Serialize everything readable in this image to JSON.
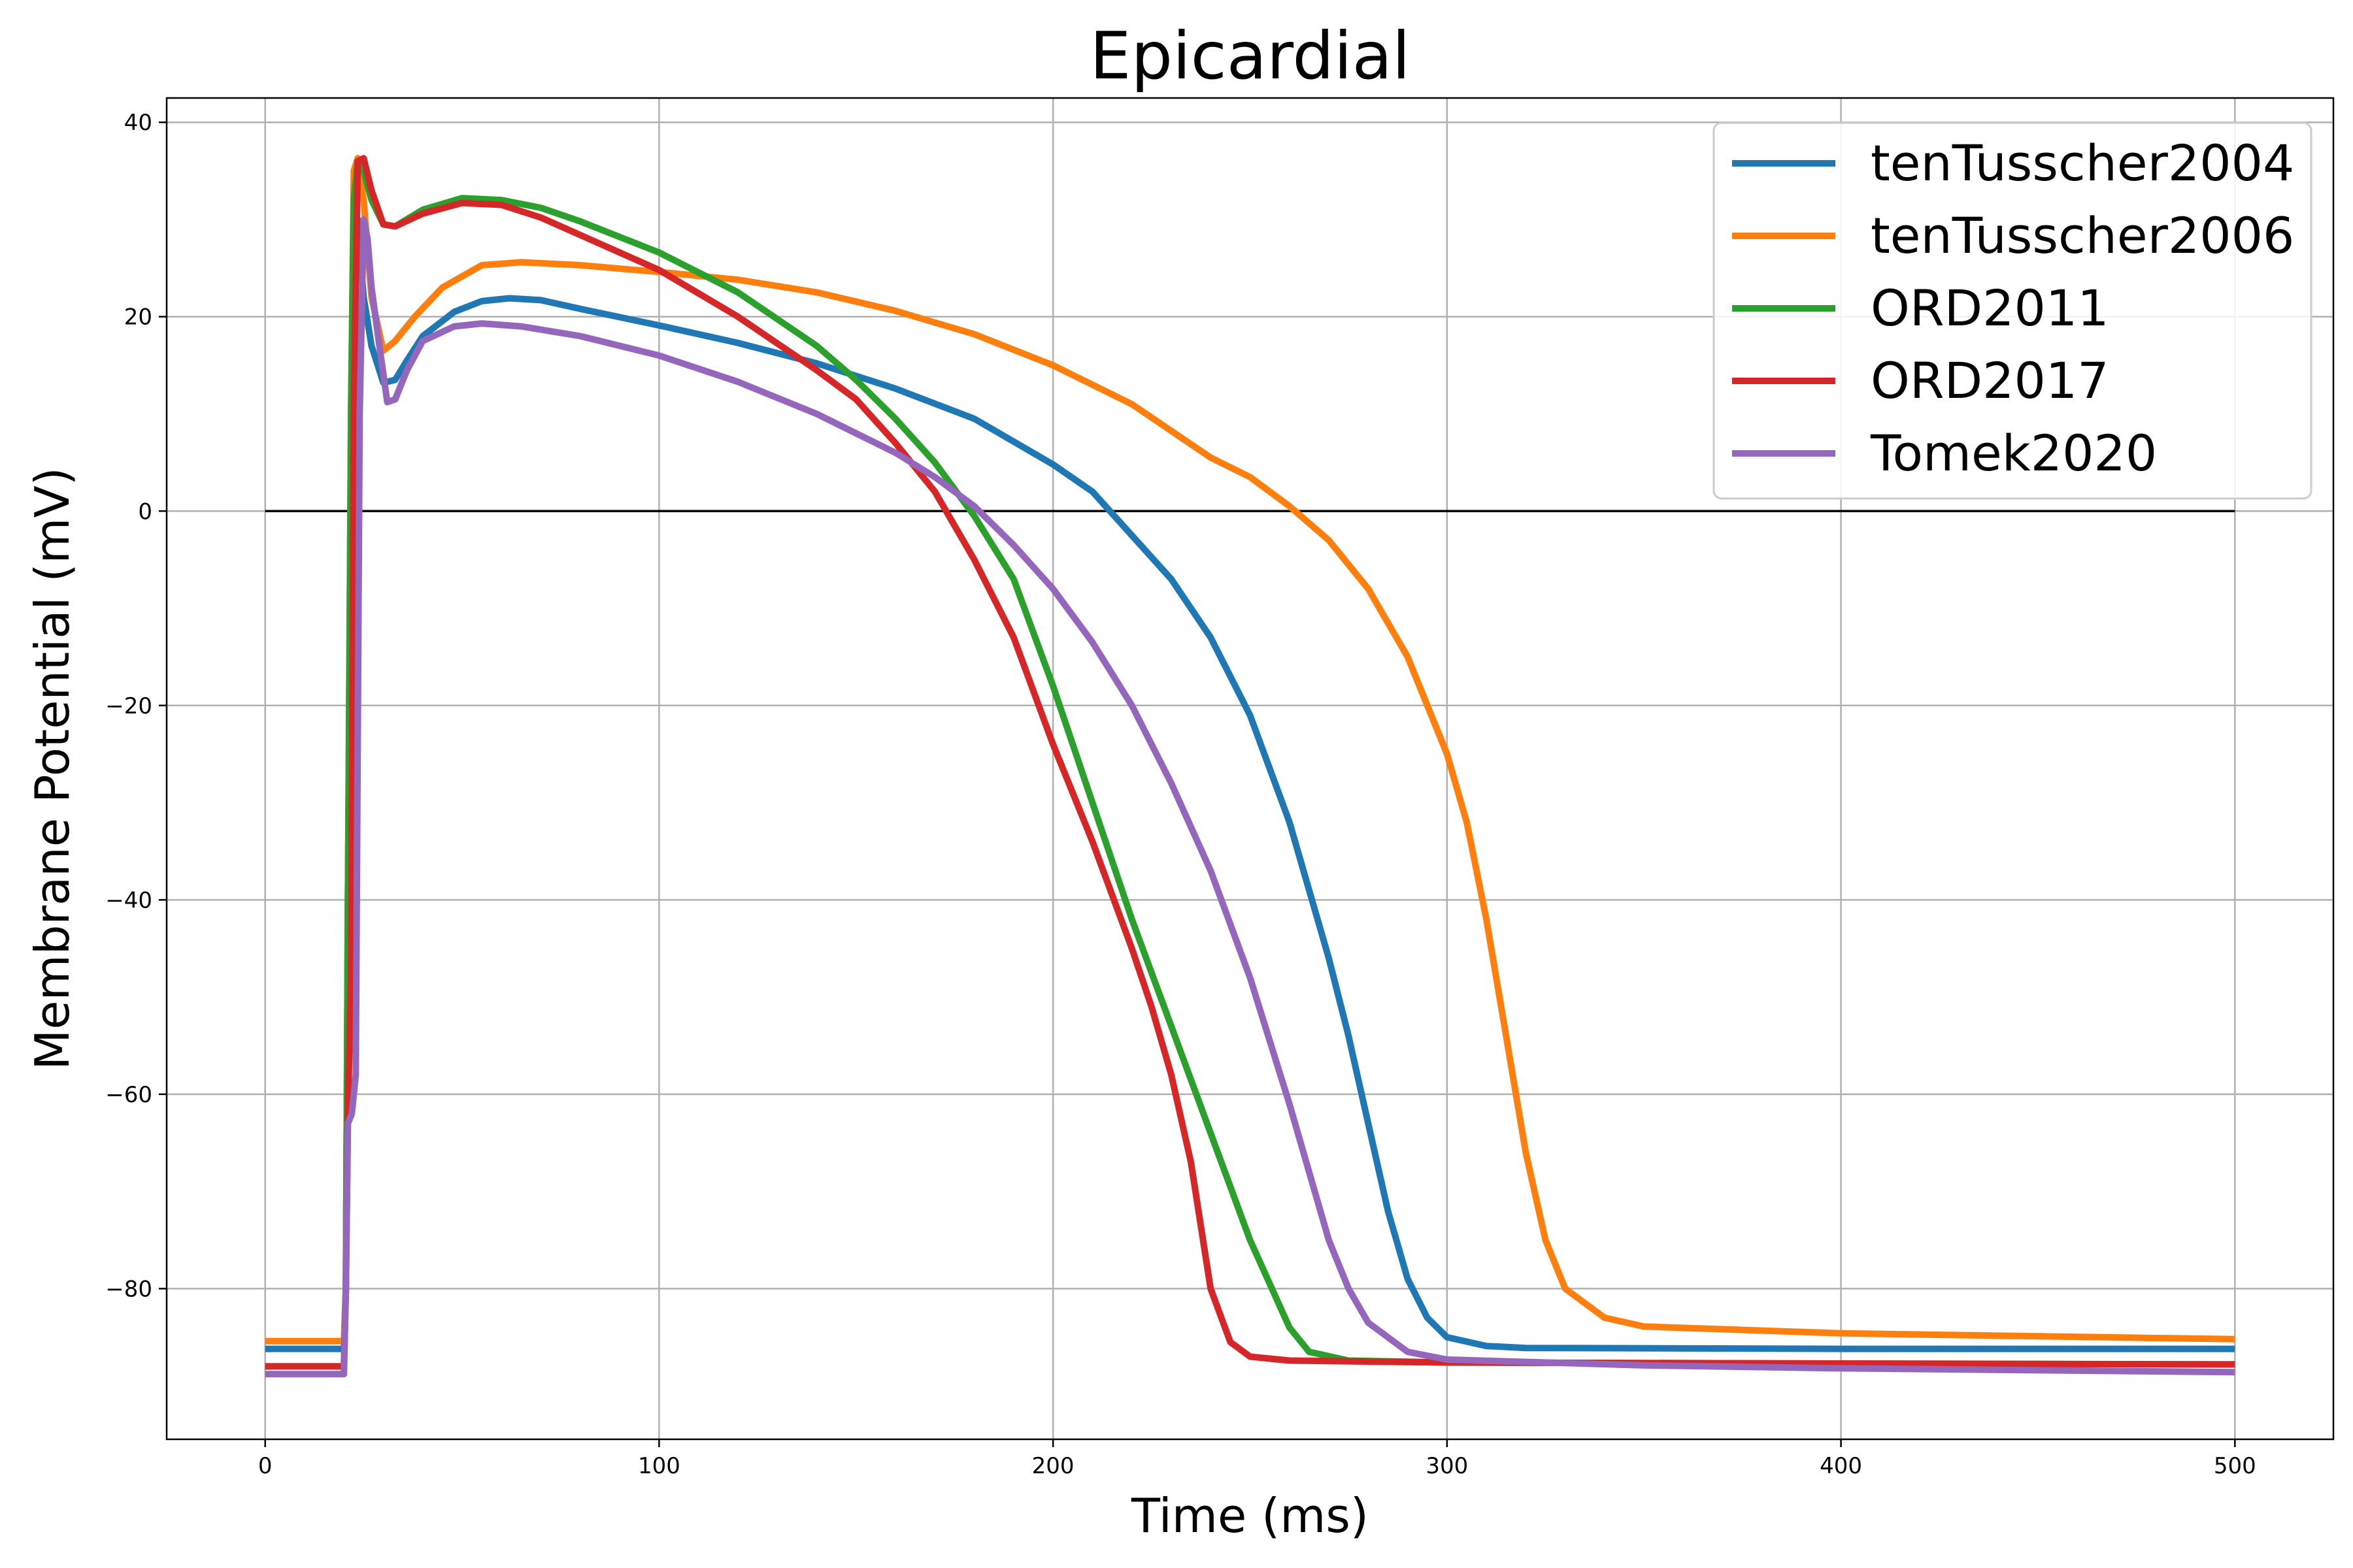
{
  "chart_data": {
    "type": "line",
    "title": "Epicardial",
    "xlabel": "Time (ms)",
    "ylabel": "Membrane Potential (mV)",
    "xlim": [
      -25,
      525
    ],
    "ylim": [
      -95.5,
      42.5
    ],
    "xticks": [
      0,
      100,
      200,
      300,
      400,
      500
    ],
    "yticks": [
      -80,
      -60,
      -40,
      -20,
      0,
      20,
      40
    ],
    "xtick_labels": [
      "0",
      "100",
      "200",
      "300",
      "400",
      "500"
    ],
    "ytick_labels": [
      "−80",
      "−60",
      "−40",
      "−20",
      "0",
      "20",
      "40"
    ],
    "grid": true,
    "legend_position": "top-right",
    "reference_line": {
      "y": 0,
      "x": [
        0,
        500
      ],
      "color": "#000000"
    },
    "series": [
      {
        "name": "tenTusscher2004",
        "color": "#1f77b4",
        "points": [
          [
            0,
            -86.2
          ],
          [
            20,
            -86.2
          ],
          [
            20.5,
            -80
          ],
          [
            21,
            -40
          ],
          [
            21.8,
            0
          ],
          [
            22.5,
            25
          ],
          [
            23.5,
            30
          ],
          [
            25,
            22
          ],
          [
            27,
            17
          ],
          [
            30,
            13.2
          ],
          [
            33,
            13.5
          ],
          [
            36,
            15.5
          ],
          [
            40,
            18
          ],
          [
            48,
            20.5
          ],
          [
            55,
            21.6
          ],
          [
            62,
            21.9
          ],
          [
            70,
            21.7
          ],
          [
            80,
            20.8
          ],
          [
            100,
            19.1
          ],
          [
            120,
            17.3
          ],
          [
            140,
            15.2
          ],
          [
            160,
            12.6
          ],
          [
            180,
            9.5
          ],
          [
            200,
            4.8
          ],
          [
            210,
            2
          ],
          [
            220,
            -2.5
          ],
          [
            230,
            -7
          ],
          [
            240,
            -13
          ],
          [
            250,
            -21
          ],
          [
            260,
            -32
          ],
          [
            270,
            -46
          ],
          [
            275,
            -54
          ],
          [
            280,
            -63
          ],
          [
            285,
            -72
          ],
          [
            290,
            -79
          ],
          [
            295,
            -83
          ],
          [
            300,
            -85
          ],
          [
            310,
            -85.9
          ],
          [
            320,
            -86.1
          ],
          [
            400,
            -86.2
          ],
          [
            500,
            -86.2
          ]
        ]
      },
      {
        "name": "tenTusscher2006",
        "color": "#ff7f0e",
        "points": [
          [
            0,
            -85.4
          ],
          [
            20,
            -85.4
          ],
          [
            20.5,
            -80
          ],
          [
            21,
            -40
          ],
          [
            21.8,
            10
          ],
          [
            22.5,
            35
          ],
          [
            23.5,
            36.3
          ],
          [
            25,
            32
          ],
          [
            27,
            22
          ],
          [
            30,
            16.5
          ],
          [
            33,
            17.5
          ],
          [
            38,
            20
          ],
          [
            45,
            23
          ],
          [
            55,
            25.3
          ],
          [
            65,
            25.6
          ],
          [
            80,
            25.3
          ],
          [
            100,
            24.6
          ],
          [
            120,
            23.8
          ],
          [
            140,
            22.5
          ],
          [
            160,
            20.6
          ],
          [
            180,
            18.2
          ],
          [
            200,
            15
          ],
          [
            220,
            11
          ],
          [
            240,
            5.5
          ],
          [
            250,
            3.5
          ],
          [
            260,
            0.5
          ],
          [
            270,
            -3
          ],
          [
            280,
            -8
          ],
          [
            290,
            -15
          ],
          [
            300,
            -25
          ],
          [
            305,
            -32
          ],
          [
            310,
            -42
          ],
          [
            315,
            -54
          ],
          [
            320,
            -66
          ],
          [
            325,
            -75
          ],
          [
            330,
            -80
          ],
          [
            340,
            -83
          ],
          [
            350,
            -83.9
          ],
          [
            400,
            -84.6
          ],
          [
            500,
            -85.2
          ]
        ]
      },
      {
        "name": "ORD2011",
        "color": "#2ca02c",
        "points": [
          [
            0,
            -88
          ],
          [
            20,
            -88
          ],
          [
            20.5,
            -80
          ],
          [
            21,
            -40
          ],
          [
            21.8,
            10
          ],
          [
            22.5,
            32
          ],
          [
            23.5,
            36
          ],
          [
            25,
            35
          ],
          [
            27,
            32
          ],
          [
            30,
            29.5
          ],
          [
            33,
            29.3
          ],
          [
            40,
            31
          ],
          [
            50,
            32.2
          ],
          [
            60,
            32
          ],
          [
            70,
            31.2
          ],
          [
            80,
            29.8
          ],
          [
            100,
            26.6
          ],
          [
            120,
            22.5
          ],
          [
            140,
            17
          ],
          [
            150,
            13.5
          ],
          [
            160,
            9.5
          ],
          [
            170,
            5
          ],
          [
            180,
            -0.5
          ],
          [
            190,
            -7
          ],
          [
            200,
            -18
          ],
          [
            210,
            -30
          ],
          [
            220,
            -42
          ],
          [
            230,
            -53
          ],
          [
            240,
            -64
          ],
          [
            250,
            -75
          ],
          [
            260,
            -84
          ],
          [
            265,
            -86.5
          ],
          [
            275,
            -87.4
          ],
          [
            300,
            -87.6
          ],
          [
            400,
            -87.7
          ],
          [
            500,
            -87.8
          ]
        ]
      },
      {
        "name": "ORD2017",
        "color": "#d62728",
        "points": [
          [
            0,
            -88
          ],
          [
            20,
            -88
          ],
          [
            20.5,
            -80
          ],
          [
            21,
            -62
          ],
          [
            21.8,
            -48
          ],
          [
            22.5,
            10
          ],
          [
            23.5,
            36
          ],
          [
            25,
            36.3
          ],
          [
            27,
            33
          ],
          [
            30,
            29.5
          ],
          [
            33,
            29.3
          ],
          [
            40,
            30.6
          ],
          [
            50,
            31.7
          ],
          [
            60,
            31.5
          ],
          [
            70,
            30.2
          ],
          [
            80,
            28.4
          ],
          [
            100,
            24.8
          ],
          [
            120,
            20
          ],
          [
            140,
            14.5
          ],
          [
            150,
            11.5
          ],
          [
            160,
            7
          ],
          [
            170,
            2
          ],
          [
            180,
            -5
          ],
          [
            190,
            -13
          ],
          [
            200,
            -24
          ],
          [
            210,
            -34
          ],
          [
            220,
            -45
          ],
          [
            225,
            -51
          ],
          [
            230,
            -58
          ],
          [
            235,
            -67
          ],
          [
            240,
            -80
          ],
          [
            245,
            -85.5
          ],
          [
            250,
            -87
          ],
          [
            260,
            -87.4
          ],
          [
            300,
            -87.6
          ],
          [
            400,
            -87.7
          ],
          [
            500,
            -87.8
          ]
        ]
      },
      {
        "name": "Tomek2020",
        "color": "#9467bd",
        "points": [
          [
            0,
            -88.8
          ],
          [
            20,
            -88.8
          ],
          [
            20.5,
            -80
          ],
          [
            21,
            -63
          ],
          [
            22,
            -62
          ],
          [
            23,
            -58
          ],
          [
            24,
            10
          ],
          [
            25,
            30
          ],
          [
            26,
            28
          ],
          [
            27,
            23
          ],
          [
            29,
            17
          ],
          [
            31,
            11.2
          ],
          [
            33,
            11.5
          ],
          [
            36,
            14.5
          ],
          [
            40,
            17.5
          ],
          [
            48,
            19
          ],
          [
            55,
            19.3
          ],
          [
            65,
            19
          ],
          [
            80,
            18
          ],
          [
            100,
            16
          ],
          [
            120,
            13.3
          ],
          [
            140,
            10
          ],
          [
            160,
            6
          ],
          [
            170,
            3.5
          ],
          [
            180,
            0.5
          ],
          [
            190,
            -3.5
          ],
          [
            200,
            -8
          ],
          [
            210,
            -13.5
          ],
          [
            220,
            -20
          ],
          [
            230,
            -28
          ],
          [
            240,
            -37
          ],
          [
            250,
            -48
          ],
          [
            260,
            -61
          ],
          [
            265,
            -68
          ],
          [
            270,
            -75
          ],
          [
            275,
            -80
          ],
          [
            280,
            -83.5
          ],
          [
            290,
            -86.5
          ],
          [
            300,
            -87.3
          ],
          [
            350,
            -87.9
          ],
          [
            400,
            -88.2
          ],
          [
            500,
            -88.6
          ]
        ]
      }
    ]
  }
}
